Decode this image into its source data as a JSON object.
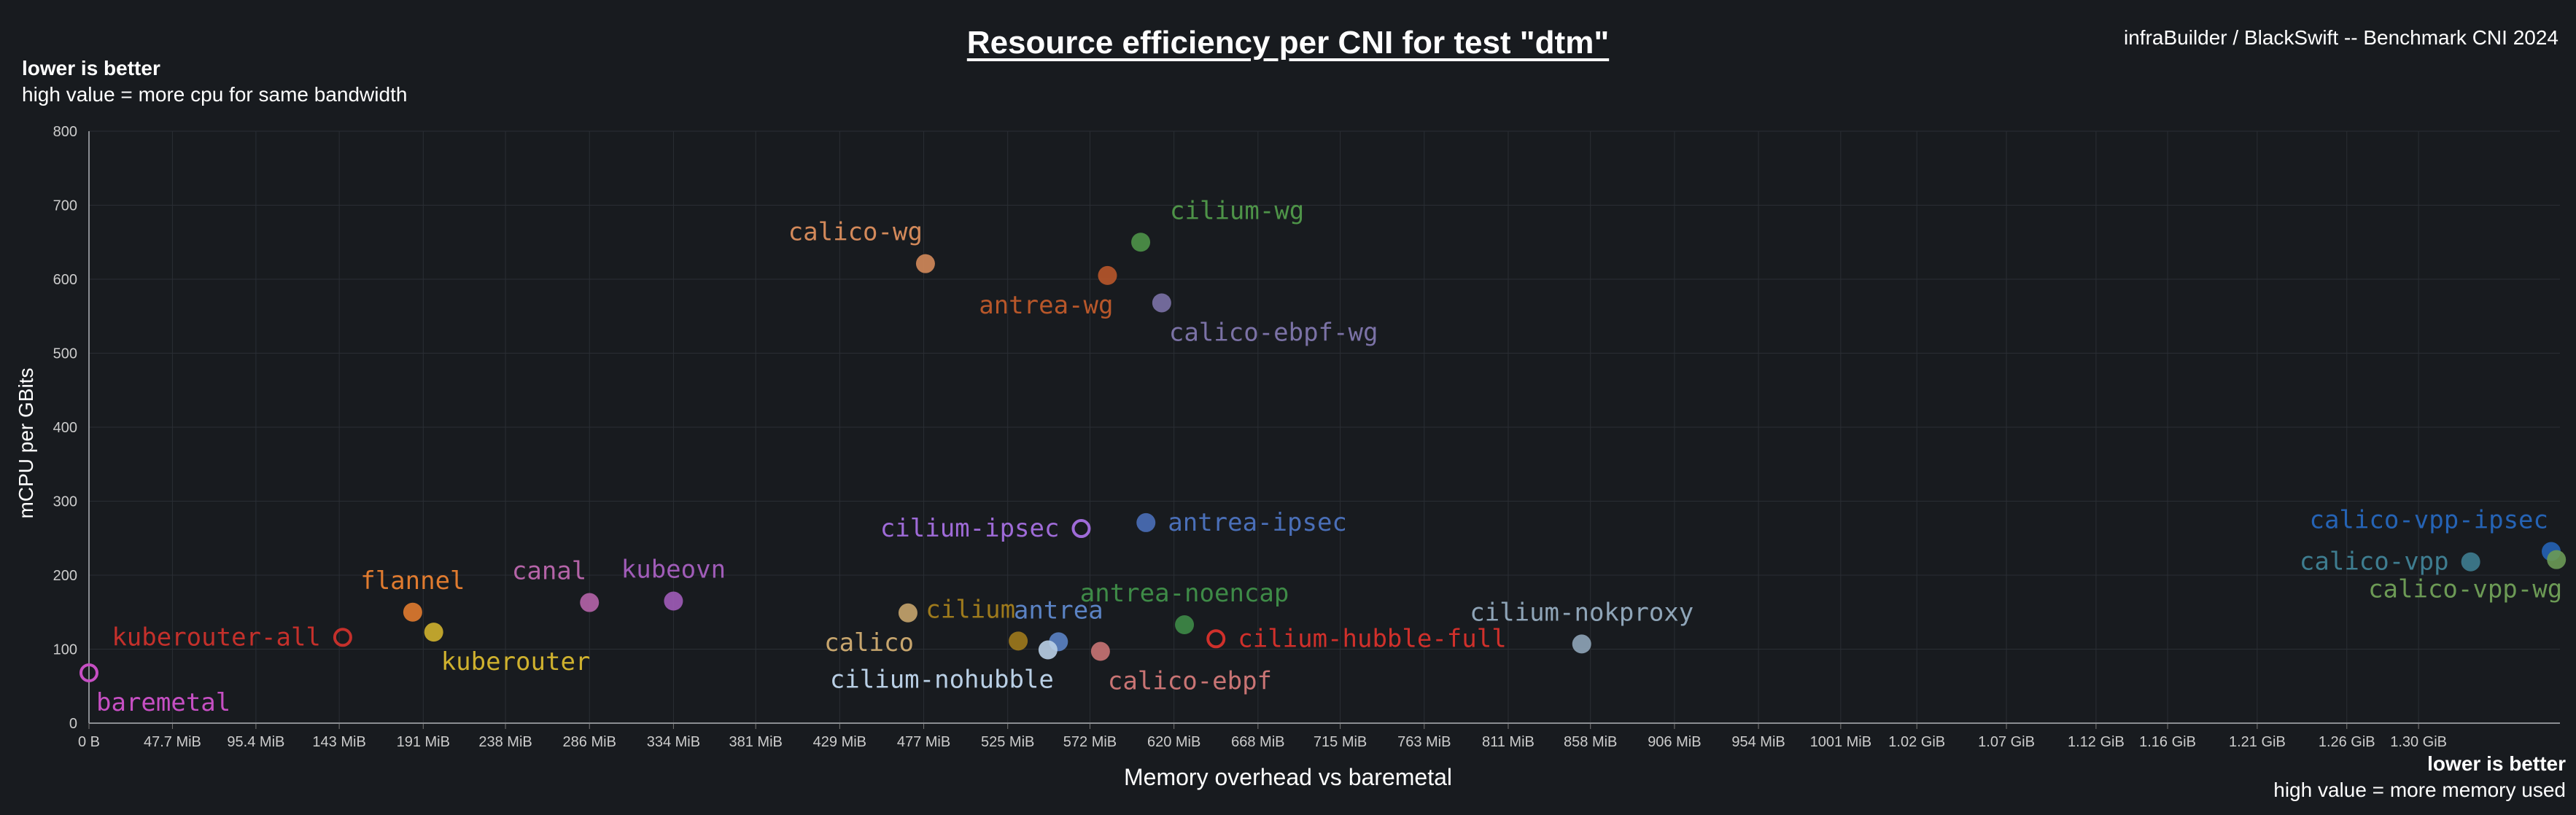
{
  "title": "Resource efficiency per CNI for test \"dtm\"",
  "branding": "infraBuilder / BlackSwift -- Benchmark CNI 2024",
  "notes": {
    "left_bold": "lower is better",
    "left_text": "high value = more cpu for same bandwidth",
    "right_bold": "lower is better",
    "right_text": "high value = more memory used"
  },
  "chart_data": {
    "type": "scatter",
    "title": "Resource efficiency per CNI for test \"dtm\"",
    "xlabel": "Memory overhead vs baremetal",
    "ylabel": "mCPU per GBits",
    "xunit": "MiB",
    "xlim": [
      0,
      1412
    ],
    "ylim": [
      0,
      800
    ],
    "y_ticks": [
      0,
      100,
      200,
      300,
      400,
      500,
      600,
      700,
      800
    ],
    "x_ticks": [
      {
        "v": 0,
        "label": "0 B"
      },
      {
        "v": 47.7,
        "label": "47.7 MiB"
      },
      {
        "v": 95.4,
        "label": "95.4 MiB"
      },
      {
        "v": 143,
        "label": "143 MiB"
      },
      {
        "v": 191,
        "label": "191 MiB"
      },
      {
        "v": 238,
        "label": "238 MiB"
      },
      {
        "v": 286,
        "label": "286 MiB"
      },
      {
        "v": 334,
        "label": "334 MiB"
      },
      {
        "v": 381,
        "label": "381 MiB"
      },
      {
        "v": 429,
        "label": "429 MiB"
      },
      {
        "v": 477,
        "label": "477 MiB"
      },
      {
        "v": 525,
        "label": "525 MiB"
      },
      {
        "v": 572,
        "label": "572 MiB"
      },
      {
        "v": 620,
        "label": "620 MiB"
      },
      {
        "v": 668,
        "label": "668 MiB"
      },
      {
        "v": 715,
        "label": "715 MiB"
      },
      {
        "v": 763,
        "label": "763 MiB"
      },
      {
        "v": 811,
        "label": "811 MiB"
      },
      {
        "v": 858,
        "label": "858 MiB"
      },
      {
        "v": 906,
        "label": "906 MiB"
      },
      {
        "v": 954,
        "label": "954 MiB"
      },
      {
        "v": 1001,
        "label": "1001 MiB"
      },
      {
        "v": 1044.5,
        "label": "1.02 GiB"
      },
      {
        "v": 1095.7,
        "label": "1.07 GiB"
      },
      {
        "v": 1146.9,
        "label": "1.12 GiB"
      },
      {
        "v": 1187.8,
        "label": "1.16 GiB"
      },
      {
        "v": 1239,
        "label": "1.21 GiB"
      },
      {
        "v": 1290.2,
        "label": "1.26 GiB"
      },
      {
        "v": 1331.2,
        "label": "1.30 GiB"
      }
    ],
    "grid": true,
    "legend": "none",
    "points": [
      {
        "name": "baremetal",
        "x": 0,
        "y": 68,
        "color": "#c64fc3",
        "hollow": true,
        "label_pos": "below-right"
      },
      {
        "name": "kuberouter-all",
        "x": 145,
        "y": 116,
        "color": "#c4302b",
        "hollow": true,
        "label_pos": "left"
      },
      {
        "name": "flannel",
        "x": 185,
        "y": 150,
        "color": "#e07b2f",
        "hollow": false,
        "label_pos": "above"
      },
      {
        "name": "kuberouter",
        "x": 197,
        "y": 123,
        "color": "#cfb12e",
        "hollow": false,
        "label_pos": "below-right"
      },
      {
        "name": "canal",
        "x": 286,
        "y": 163,
        "color": "#b564a8",
        "hollow": false,
        "label_pos": "above-left"
      },
      {
        "name": "kubeovn",
        "x": 334,
        "y": 165,
        "color": "#a05cb8",
        "hollow": false,
        "label_pos": "above"
      },
      {
        "name": "calico",
        "x": 468,
        "y": 149,
        "color": "#c7a56d",
        "hollow": false,
        "label_pos": "below-left"
      },
      {
        "name": "cilium",
        "x": 531,
        "y": 111,
        "color": "#9e7a1c",
        "hollow": false,
        "label_pos": "above-left"
      },
      {
        "name": "antrea",
        "x": 554,
        "y": 110,
        "color": "#5b83c4",
        "hollow": false,
        "label_pos": "above"
      },
      {
        "name": "cilium-nohubble",
        "x": 548,
        "y": 99,
        "color": "#b9cfe5",
        "hollow": false,
        "label_pos": "below-left"
      },
      {
        "name": "calico-ebpf",
        "x": 578,
        "y": 97,
        "color": "#c97474",
        "hollow": false,
        "label_pos": "below-right"
      },
      {
        "name": "antrea-noencap",
        "x": 626,
        "y": 133,
        "color": "#3e8b47",
        "hollow": false,
        "label_pos": "above"
      },
      {
        "name": "cilium-hubble-full",
        "x": 644,
        "y": 114,
        "color": "#d0302b",
        "hollow": true,
        "label_pos": "right"
      },
      {
        "name": "cilium-ipsec",
        "x": 567,
        "y": 263,
        "color": "#9f6bd8",
        "hollow": true,
        "label_pos": "left"
      },
      {
        "name": "antrea-ipsec",
        "x": 604,
        "y": 271,
        "color": "#4a6fb8",
        "hollow": false,
        "label_pos": "right"
      },
      {
        "name": "calico-wg",
        "x": 478,
        "y": 621,
        "color": "#d3895a",
        "hollow": false,
        "label_pos": "above-left"
      },
      {
        "name": "antrea-wg",
        "x": 582,
        "y": 605,
        "color": "#b8572a",
        "hollow": false,
        "label_pos": "below-left"
      },
      {
        "name": "cilium-wg",
        "x": 601,
        "y": 650,
        "color": "#4e9448",
        "hollow": false,
        "label_pos": "above-right"
      },
      {
        "name": "calico-ebpf-wg",
        "x": 613,
        "y": 568,
        "color": "#7b72a6",
        "hollow": false,
        "label_pos": "below-right"
      },
      {
        "name": "cilium-nokproxy",
        "x": 853,
        "y": 107,
        "color": "#8fa5b8",
        "hollow": false,
        "label_pos": "above"
      },
      {
        "name": "calico-vpp",
        "x": 1361,
        "y": 218,
        "color": "#3e7d90",
        "hollow": false,
        "label_pos": "left"
      },
      {
        "name": "calico-vpp-ipsec",
        "x": 1407,
        "y": 232,
        "color": "#2563b5",
        "hollow": false,
        "label_pos": "above-left"
      },
      {
        "name": "calico-vpp-wg",
        "x": 1410,
        "y": 221,
        "color": "#6c9a55",
        "hollow": false,
        "label_pos": "below-left"
      }
    ]
  }
}
